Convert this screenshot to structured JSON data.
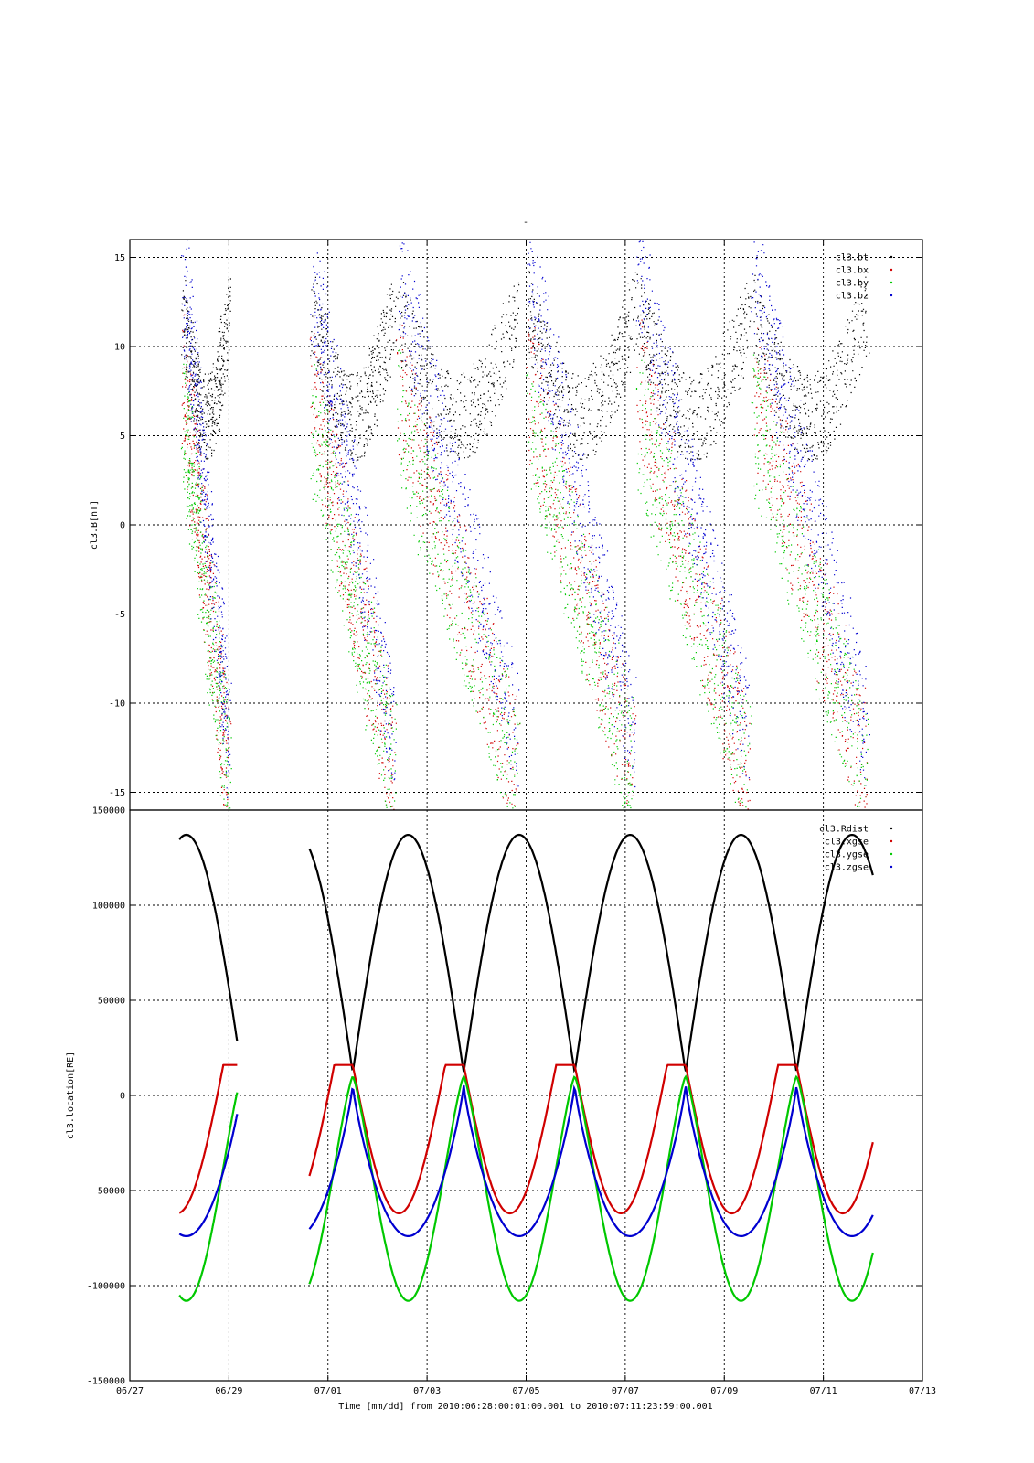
{
  "chart_data": [
    {
      "type": "scatter",
      "title": "-",
      "xlabel": "",
      "ylabel": "cl3.B[nT]",
      "ylim": [
        -16,
        16
      ],
      "yticks": [
        -15,
        -10,
        -5,
        0,
        5,
        10,
        15
      ],
      "xlim": [
        "2010-06-27",
        "2010-07-13"
      ],
      "grid": true,
      "legend_position": "top-right",
      "series": [
        {
          "name": "cl3.bt",
          "color": "#000000"
        },
        {
          "name": "cl3.bx",
          "color": "#d00000"
        },
        {
          "name": "cl3.by",
          "color": "#00c800"
        },
        {
          "name": "cl3.bz",
          "color": "#0000d0"
        }
      ],
      "passes": [
        {
          "start": "2010-06-28T02:00",
          "end": "2010-06-29T00:00"
        },
        {
          "start": "2010-06-30T16:00",
          "end": "2010-07-02T08:00"
        },
        {
          "start": "2010-07-02T10:00",
          "end": "2010-07-04T20:00"
        },
        {
          "start": "2010-07-05T01:00",
          "end": "2010-07-07T04:00"
        },
        {
          "start": "2010-07-07T06:00",
          "end": "2010-07-09T12:00"
        },
        {
          "start": "2010-07-09T14:00",
          "end": "2010-07-11T21:00"
        }
      ]
    },
    {
      "type": "line",
      "xlabel": "Time [mm/dd]  from 2010:06:28:00:01:00.001  to  2010:07:11:23:59:00.001",
      "ylabel": "cl3.location[RE]",
      "ylim": [
        -150000,
        150000
      ],
      "yticks": [
        -150000,
        -100000,
        -50000,
        0,
        50000,
        100000,
        150000
      ],
      "xlim": [
        "2010-06-27",
        "2010-07-13"
      ],
      "xticks": [
        "06/27",
        "06/29",
        "07/01",
        "07/03",
        "07/05",
        "07/07",
        "07/09",
        "07/11",
        "07/13"
      ],
      "grid": true,
      "legend_position": "top-right",
      "series": [
        {
          "name": "cl3.Rdist",
          "color": "#000000"
        },
        {
          "name": "cl3.xgse",
          "color": "#d00000"
        },
        {
          "name": "cl3.ygse",
          "color": "#00c800"
        },
        {
          "name": "cl3.zgse",
          "color": "#0000d0"
        }
      ],
      "orbit": {
        "perigees": [
          "2010-07-01T12:00",
          "2010-07-03T17:00",
          "2010-07-05T23:00",
          "2010-07-08T05:00",
          "2010-07-10T11:00"
        ],
        "apogee_rdist": 137000,
        "perigee_rdist": 12000,
        "x_range": [
          -62000,
          16000
        ],
        "y_range": [
          -108000,
          10000
        ],
        "z_range": [
          -74000,
          6000
        ]
      },
      "segments": [
        {
          "start": "2010-06-28T00:01",
          "end": "2010-06-29T04:00"
        },
        {
          "start": "2010-06-30T15:00",
          "end": "2010-07-11T23:59"
        }
      ]
    }
  ]
}
